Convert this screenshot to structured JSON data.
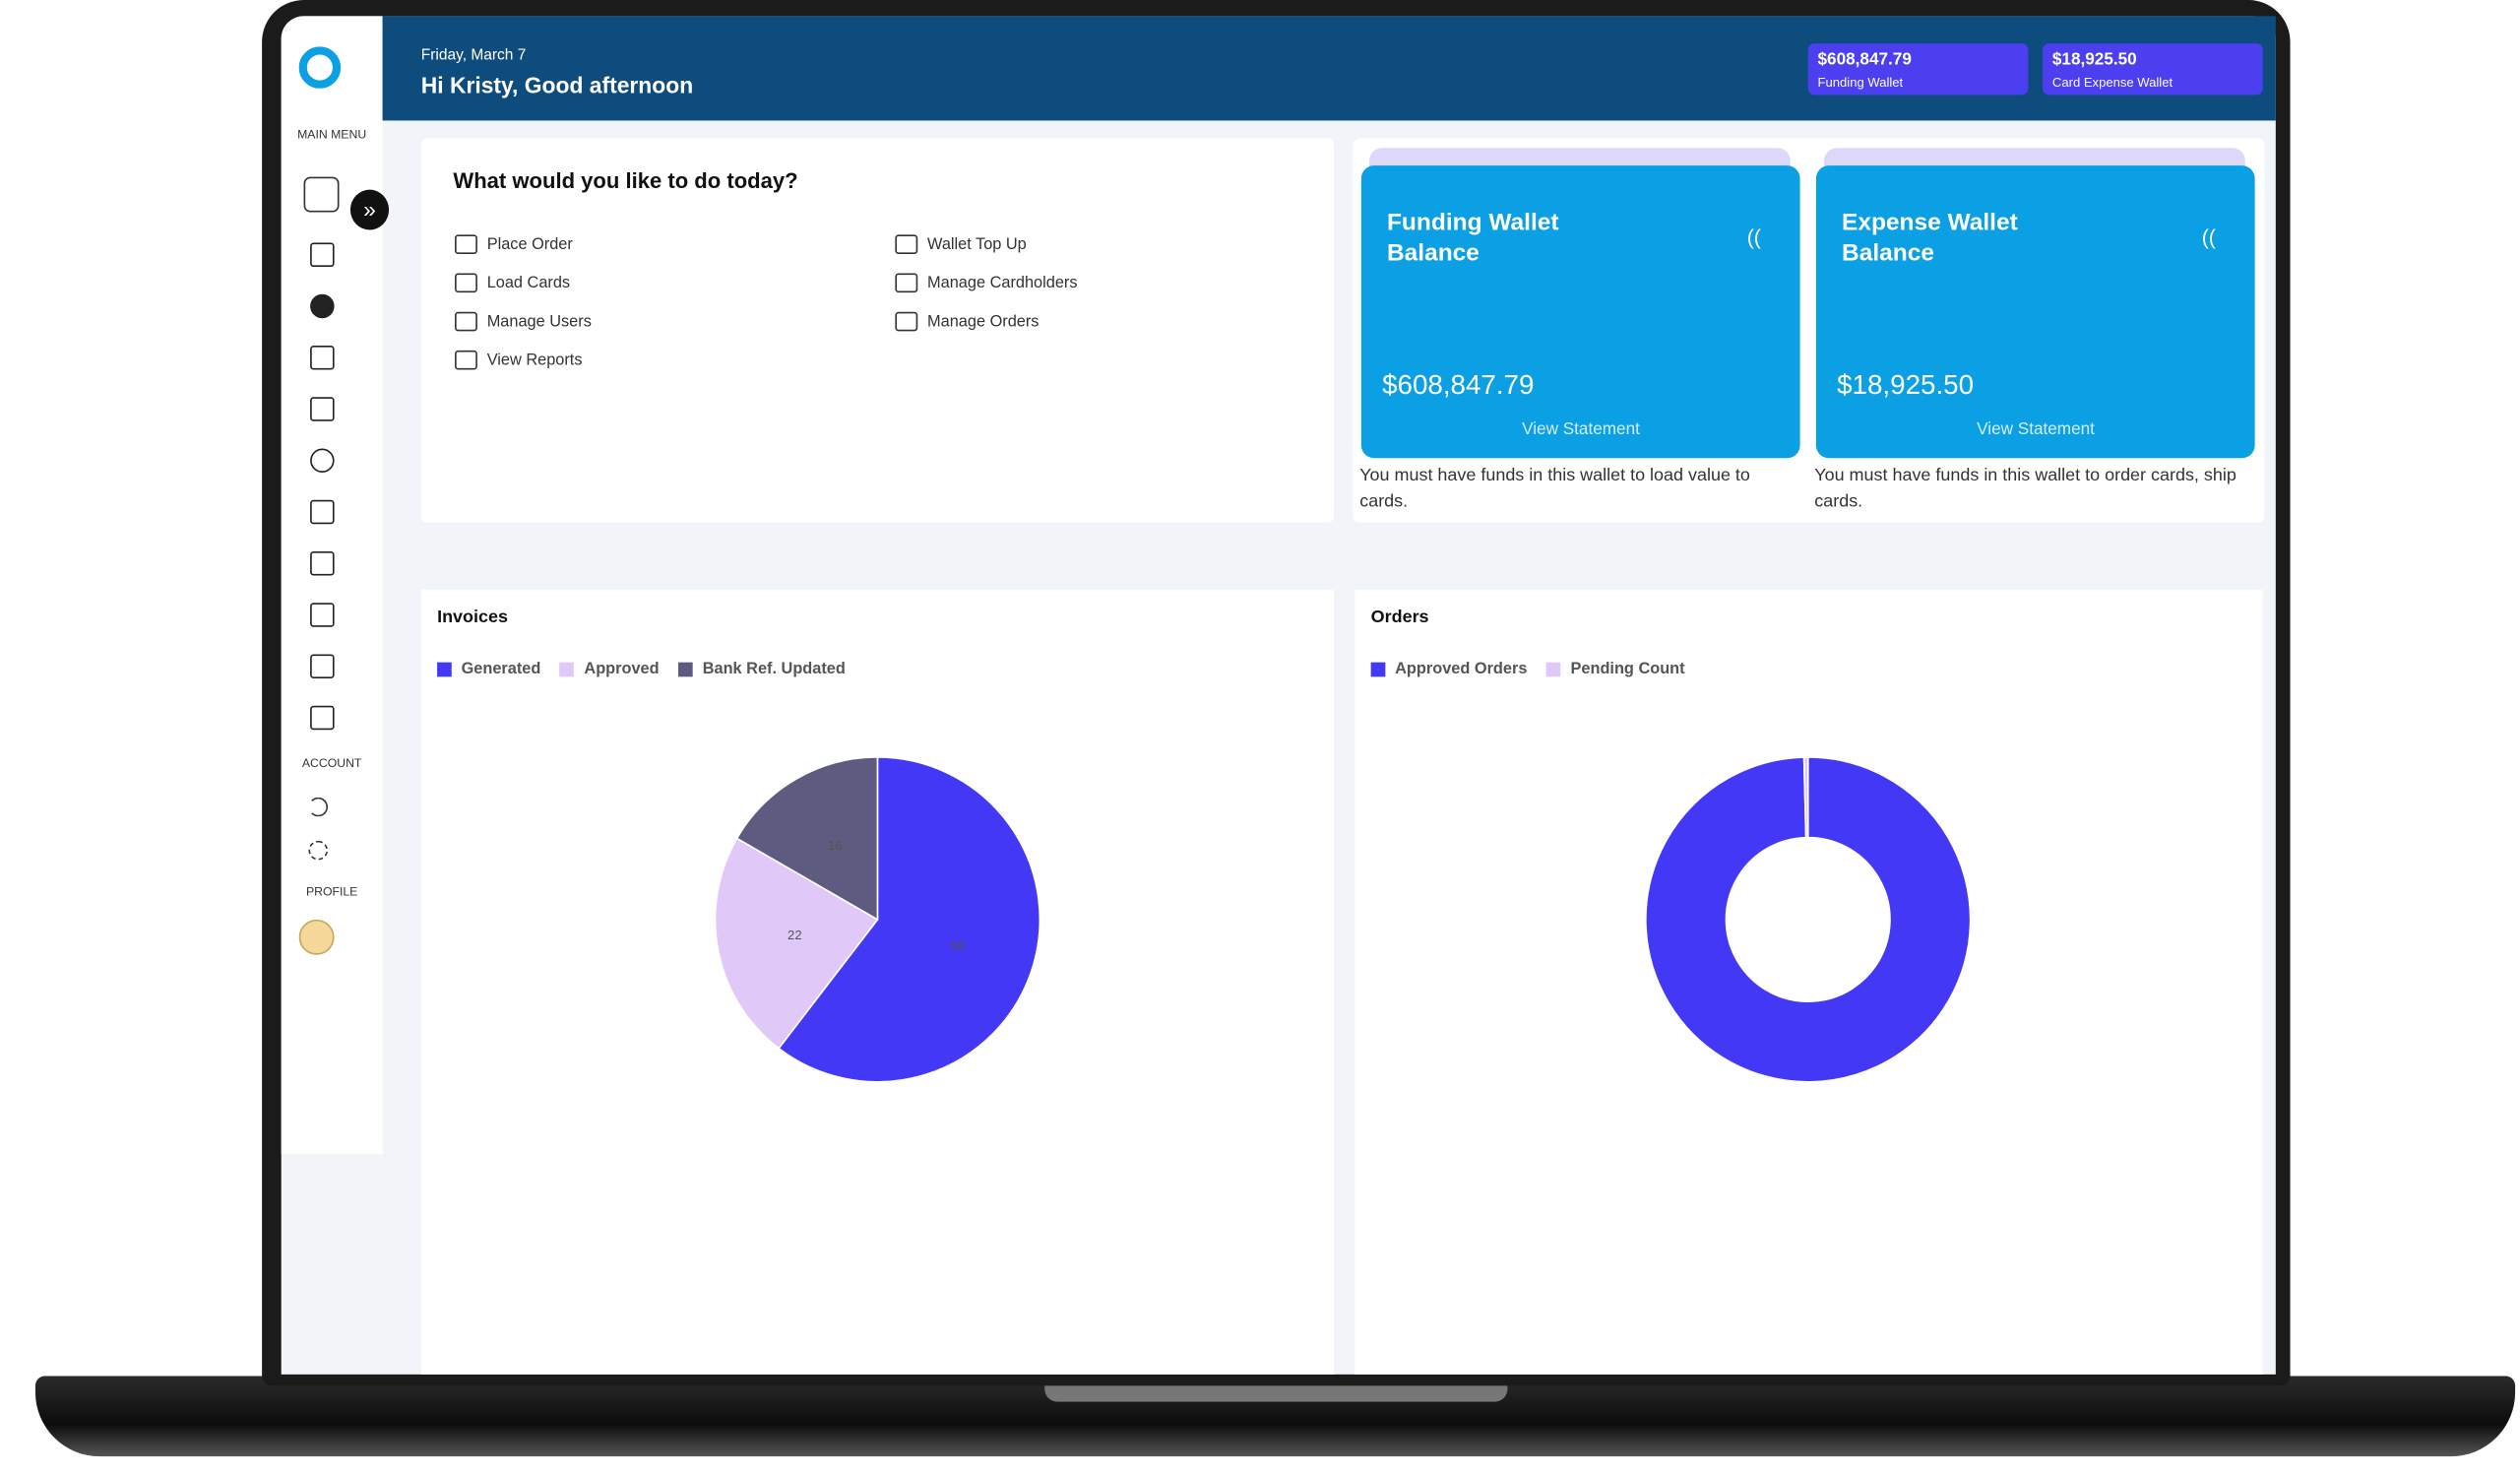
{
  "header": {
    "date": "Friday, March 7",
    "greeting": "Hi Kristy, Good afternoon"
  },
  "chips": [
    {
      "amount": "$608,847.79",
      "label": "Funding Wallet"
    },
    {
      "amount": "$18,925.50",
      "label": "Card Expense Wallet"
    }
  ],
  "sidebar": {
    "main_menu": "MAIN MENU",
    "account": "ACCOUNT",
    "profile": "PROFILE"
  },
  "quick_actions": {
    "title": "What would you like to do today?",
    "left": [
      "Place Order",
      "Load Cards",
      "Manage Users",
      "View Reports"
    ],
    "right": [
      "Wallet Top Up",
      "Manage Cardholders",
      "Manage Orders"
    ]
  },
  "wallet_cards": [
    {
      "title": "Funding Wallet Balance",
      "amount": "$608,847.79",
      "link": "View Statement",
      "note": "You must have funds in this wallet to load value to cards."
    },
    {
      "title": "Expense Wallet Balance",
      "amount": "$18,925.50",
      "link": "View Statement",
      "note": "You must have funds in this wallet to order cards, ship cards."
    }
  ],
  "chart_data": [
    {
      "type": "pie",
      "title": "Invoices",
      "categories": [
        "Generated",
        "Approved",
        "Bank Ref. Updated"
      ],
      "values": [
        58,
        22,
        16
      ],
      "colors": [
        "#4338f5",
        "#e0c8f8",
        "#5d5b80"
      ],
      "legend": "top-left"
    },
    {
      "type": "donut",
      "title": "Orders",
      "categories": [
        "Approved Orders",
        "Pending Count"
      ],
      "values": [
        250,
        1
      ],
      "colors": [
        "#4338f5",
        "#e0c8f8"
      ],
      "legend": "top-left"
    }
  ]
}
